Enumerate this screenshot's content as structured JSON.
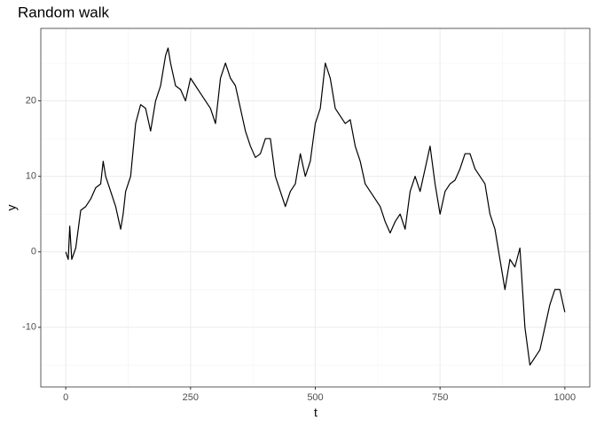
{
  "chart_data": {
    "type": "line",
    "title": "Random walk",
    "x_label": "t",
    "y_label": "y",
    "x": [
      0,
      5,
      8,
      12,
      20,
      30,
      40,
      50,
      60,
      70,
      75,
      80,
      90,
      100,
      110,
      115,
      120,
      130,
      140,
      150,
      160,
      170,
      180,
      190,
      200,
      205,
      210,
      220,
      230,
      240,
      250,
      260,
      270,
      280,
      290,
      300,
      310,
      320,
      330,
      340,
      350,
      360,
      370,
      380,
      390,
      400,
      410,
      420,
      430,
      440,
      450,
      460,
      470,
      480,
      490,
      500,
      510,
      520,
      530,
      540,
      550,
      560,
      570,
      580,
      590,
      600,
      610,
      620,
      630,
      640,
      650,
      660,
      670,
      680,
      690,
      700,
      710,
      720,
      730,
      740,
      750,
      760,
      770,
      780,
      790,
      800,
      810,
      820,
      830,
      840,
      850,
      860,
      870,
      880,
      890,
      900,
      910,
      920,
      930,
      940,
      950,
      960,
      970,
      980,
      990,
      1000
    ],
    "series": [
      {
        "name": "y",
        "color": "#000000",
        "values": [
          0,
          -1,
          3.4,
          -1,
          0.5,
          5.5,
          6,
          7,
          8.5,
          9,
          12,
          10,
          8,
          6,
          3,
          5,
          8,
          10,
          17,
          19.5,
          19,
          16,
          20,
          22,
          26,
          27,
          25,
          22,
          21.5,
          20,
          23,
          22,
          21,
          20,
          19,
          17,
          23,
          25,
          23,
          22,
          19,
          16,
          14,
          12.5,
          13,
          15,
          15,
          10,
          8,
          6,
          8,
          9,
          13,
          10,
          12,
          17,
          19,
          25,
          23,
          19,
          18,
          17,
          17.5,
          14,
          12,
          9,
          8,
          7,
          6,
          4,
          2.5,
          4,
          5,
          3,
          8,
          10,
          8,
          11,
          14,
          9,
          5,
          8,
          9,
          9.5,
          11,
          13,
          13,
          11,
          10,
          9,
          5,
          3,
          -1,
          -5,
          -1,
          -2,
          0.5,
          -10,
          -15,
          -14,
          -13,
          -10,
          -7,
          -5,
          -5,
          -8
        ]
      }
    ],
    "xlim": [
      -50,
      1050
    ],
    "ylim": [
      -17.9,
      29.6
    ],
    "xticks": [
      0,
      250,
      500,
      750,
      1000
    ],
    "yticks": [
      -10,
      0,
      10,
      20
    ],
    "grid": true
  }
}
